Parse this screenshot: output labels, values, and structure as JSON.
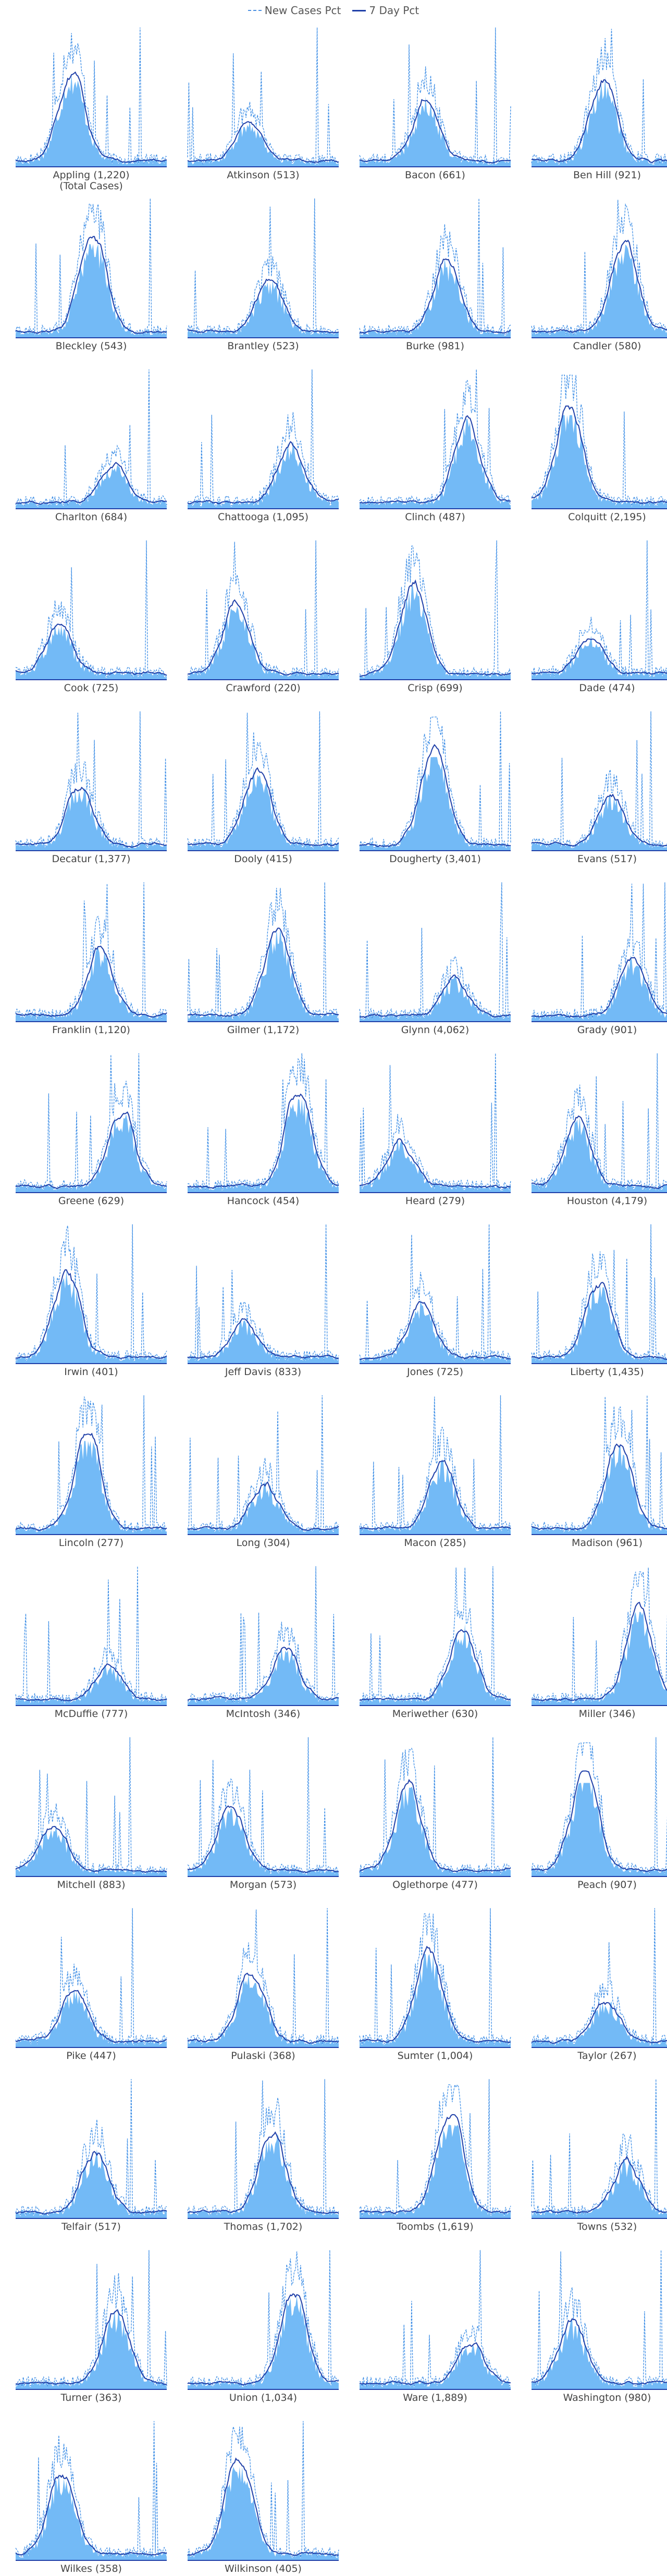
{
  "legend": {
    "new_cases_label": "New Cases Pct",
    "seven_day_label": "7 Day Pct"
  },
  "colors": {
    "area_fill": "#5aaef5",
    "new_cases_line": "#3d8ee6",
    "seven_day_line": "#1f3fa8",
    "baseline": "#1f3fa8"
  },
  "chart_data": {
    "type": "area",
    "series_names": [
      "New Cases Pct",
      "7 Day Pct"
    ],
    "grid": false,
    "legend_placement": "top-center",
    "panels": [
      {
        "label": "Appling (1,220)",
        "sub": "(Total Cases)"
      },
      {
        "label": "Atkinson (513)"
      },
      {
        "label": "Bacon (661)"
      },
      {
        "label": "Ben Hill (921)"
      },
      {
        "label": "Bleckley (543)"
      },
      {
        "label": "Brantley (523)"
      },
      {
        "label": "Burke (981)"
      },
      {
        "label": "Candler (580)"
      },
      {
        "label": "Charlton (684)"
      },
      {
        "label": "Chattooga (1,095)"
      },
      {
        "label": "Clinch (487)"
      },
      {
        "label": "Colquitt (2,195)"
      },
      {
        "label": "Cook (725)"
      },
      {
        "label": "Crawford (220)"
      },
      {
        "label": "Crisp (699)"
      },
      {
        "label": "Dade (474)"
      },
      {
        "label": "Decatur (1,377)"
      },
      {
        "label": "Dooly (415)"
      },
      {
        "label": "Dougherty (3,401)"
      },
      {
        "label": "Evans (517)"
      },
      {
        "label": "Franklin (1,120)"
      },
      {
        "label": "Gilmer (1,172)"
      },
      {
        "label": "Glynn (4,062)"
      },
      {
        "label": "Grady (901)"
      },
      {
        "label": "Greene (629)"
      },
      {
        "label": "Hancock (454)"
      },
      {
        "label": "Heard (279)"
      },
      {
        "label": "Houston (4,179)"
      },
      {
        "label": "Irwin (401)"
      },
      {
        "label": "Jeff Davis (833)"
      },
      {
        "label": "Jones (725)"
      },
      {
        "label": "Liberty (1,435)"
      },
      {
        "label": "Lincoln (277)"
      },
      {
        "label": "Long (304)"
      },
      {
        "label": "Macon (285)"
      },
      {
        "label": "Madison (961)"
      },
      {
        "label": "McDuffie (777)"
      },
      {
        "label": "McIntosh (346)"
      },
      {
        "label": "Meriwether (630)"
      },
      {
        "label": "Miller (346)"
      },
      {
        "label": "Mitchell (883)"
      },
      {
        "label": "Morgan (573)"
      },
      {
        "label": "Oglethorpe (477)"
      },
      {
        "label": "Peach (907)"
      },
      {
        "label": "Pike (447)"
      },
      {
        "label": "Pulaski (368)"
      },
      {
        "label": "Sumter (1,004)"
      },
      {
        "label": "Taylor (267)"
      },
      {
        "label": "Telfair (517)"
      },
      {
        "label": "Thomas (1,702)"
      },
      {
        "label": "Toombs (1,619)"
      },
      {
        "label": "Towns (532)"
      },
      {
        "label": "Turner (363)"
      },
      {
        "label": "Union (1,034)"
      },
      {
        "label": "Ware (1,889)"
      },
      {
        "label": "Washington (980)"
      },
      {
        "label": "Wilkes (358)"
      },
      {
        "label": "Wilkinson (405)"
      }
    ]
  }
}
